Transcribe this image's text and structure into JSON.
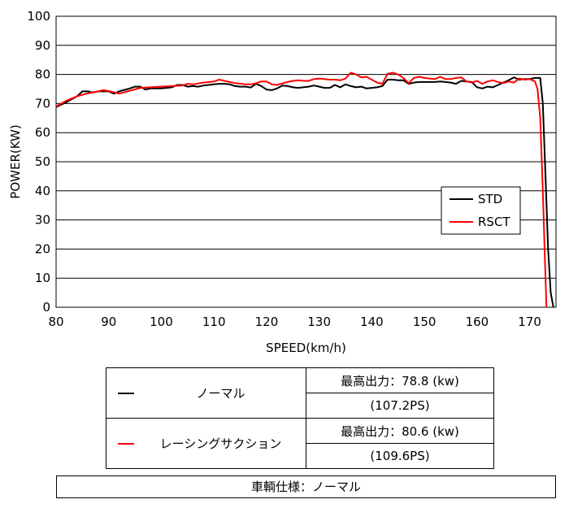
{
  "chart_data": {
    "type": "line",
    "xlabel": "SPEED(km/h)",
    "ylabel": "POWER(KW)",
    "xlim": [
      80,
      175
    ],
    "ylim": [
      0,
      100
    ],
    "x_ticks": [
      "80",
      "90",
      "100",
      "110",
      "120",
      "130",
      "140",
      "150",
      "160",
      "170"
    ],
    "y_ticks": [
      "0",
      "10",
      "20",
      "30",
      "40",
      "50",
      "60",
      "70",
      "80",
      "90",
      "100"
    ],
    "legend_position": "center-right",
    "series": [
      {
        "name": "STD",
        "color": "#000000",
        "x": [
          80,
          82,
          84,
          85,
          86,
          87,
          88,
          90,
          91,
          92,
          94,
          95,
          96,
          97,
          98,
          100,
          101,
          102,
          103,
          104,
          105,
          106,
          107,
          108,
          110,
          111,
          112,
          113,
          114,
          115,
          116,
          117,
          118,
          119,
          120,
          121,
          122,
          123,
          124,
          125,
          126,
          127,
          128,
          129,
          130,
          131,
          132,
          133,
          134,
          135,
          136,
          137,
          138,
          139,
          140,
          141,
          142,
          143,
          144,
          145,
          146,
          147,
          148,
          149,
          150,
          151,
          152,
          153,
          154,
          155,
          156,
          157,
          158,
          159,
          160,
          161,
          162,
          163,
          164,
          165,
          166,
          167,
          168,
          169,
          170,
          171,
          172,
          172.5,
          173,
          173.5,
          174,
          174.5
        ],
        "y": [
          68.8,
          70.5,
          72.5,
          74.2,
          74.2,
          73.8,
          74.2,
          74.2,
          73.4,
          74.2,
          75.2,
          75.8,
          75.8,
          74.8,
          75.2,
          75.2,
          75.4,
          75.6,
          76.4,
          76.4,
          75.8,
          76.0,
          75.8,
          76.2,
          76.6,
          76.8,
          76.8,
          76.6,
          76.0,
          75.8,
          75.8,
          75.5,
          76.8,
          76.0,
          74.8,
          74.6,
          75.2,
          76.2,
          76.0,
          75.6,
          75.4,
          75.6,
          75.8,
          76.2,
          75.8,
          75.4,
          75.4,
          76.4,
          75.6,
          76.6,
          76.0,
          75.6,
          75.8,
          75.2,
          75.4,
          75.6,
          76.0,
          78.2,
          78.2,
          78.0,
          78.0,
          76.8,
          77.2,
          77.4,
          77.4,
          77.4,
          77.4,
          77.6,
          77.4,
          77.2,
          76.8,
          77.8,
          77.6,
          77.4,
          75.6,
          75.2,
          75.8,
          75.6,
          76.4,
          77.2,
          78.0,
          79.0,
          78.2,
          78.4,
          78.4,
          78.8,
          78.8,
          70.0,
          45.0,
          20.0,
          5.0,
          0
        ]
      },
      {
        "name": "RSCT",
        "color": "#ff0000",
        "x": [
          80,
          82,
          84,
          86,
          88,
          89,
          90,
          92,
          94,
          96,
          98,
          100,
          102,
          104,
          105,
          106,
          108,
          110,
          111,
          112,
          114,
          116,
          117,
          118,
          119,
          120,
          121,
          122,
          124,
          125,
          126,
          127,
          128,
          129,
          130,
          131,
          132,
          133,
          134,
          135,
          136,
          137,
          138,
          139,
          140,
          141,
          142,
          143,
          144,
          145,
          146,
          147,
          148,
          149,
          150,
          151,
          152,
          153,
          154,
          155,
          156,
          157,
          158,
          159,
          160,
          161,
          162,
          163,
          164,
          165,
          166,
          167,
          168,
          169,
          170,
          171,
          171.5,
          172,
          172.5,
          173,
          173.2
        ],
        "y": [
          69.0,
          71.0,
          72.5,
          73.5,
          74.2,
          74.6,
          74.3,
          73.4,
          74.4,
          75.4,
          75.6,
          75.8,
          76.0,
          76.2,
          76.8,
          76.6,
          77.2,
          77.6,
          78.2,
          77.8,
          77.0,
          76.6,
          76.6,
          77.0,
          77.6,
          77.6,
          76.6,
          76.4,
          77.4,
          77.8,
          78.0,
          77.8,
          77.8,
          78.4,
          78.6,
          78.4,
          78.2,
          78.2,
          78.0,
          78.6,
          80.6,
          80.0,
          79.0,
          79.2,
          78.2,
          77.2,
          76.8,
          80.2,
          80.6,
          80.0,
          78.8,
          77.0,
          78.8,
          79.2,
          78.8,
          78.6,
          78.4,
          79.2,
          78.4,
          78.4,
          78.8,
          79.0,
          77.6,
          77.2,
          77.8,
          76.8,
          77.6,
          78.0,
          77.4,
          77.0,
          77.6,
          77.2,
          78.6,
          78.2,
          78.4,
          77.6,
          75.0,
          65.0,
          40.0,
          10.0,
          0
        ]
      }
    ]
  },
  "table": {
    "rows": [
      {
        "name": "ノーマル",
        "color": "#000000",
        "max_output": "最高出力：78.8 (kw)",
        "ps": "(107.2PS)"
      },
      {
        "name": "レーシングサクション",
        "color": "#ff0000",
        "max_output": "最高出力：80.6 (kw)",
        "ps": "(109.6PS)"
      }
    ]
  },
  "footer": "車輌仕様：ノーマル"
}
